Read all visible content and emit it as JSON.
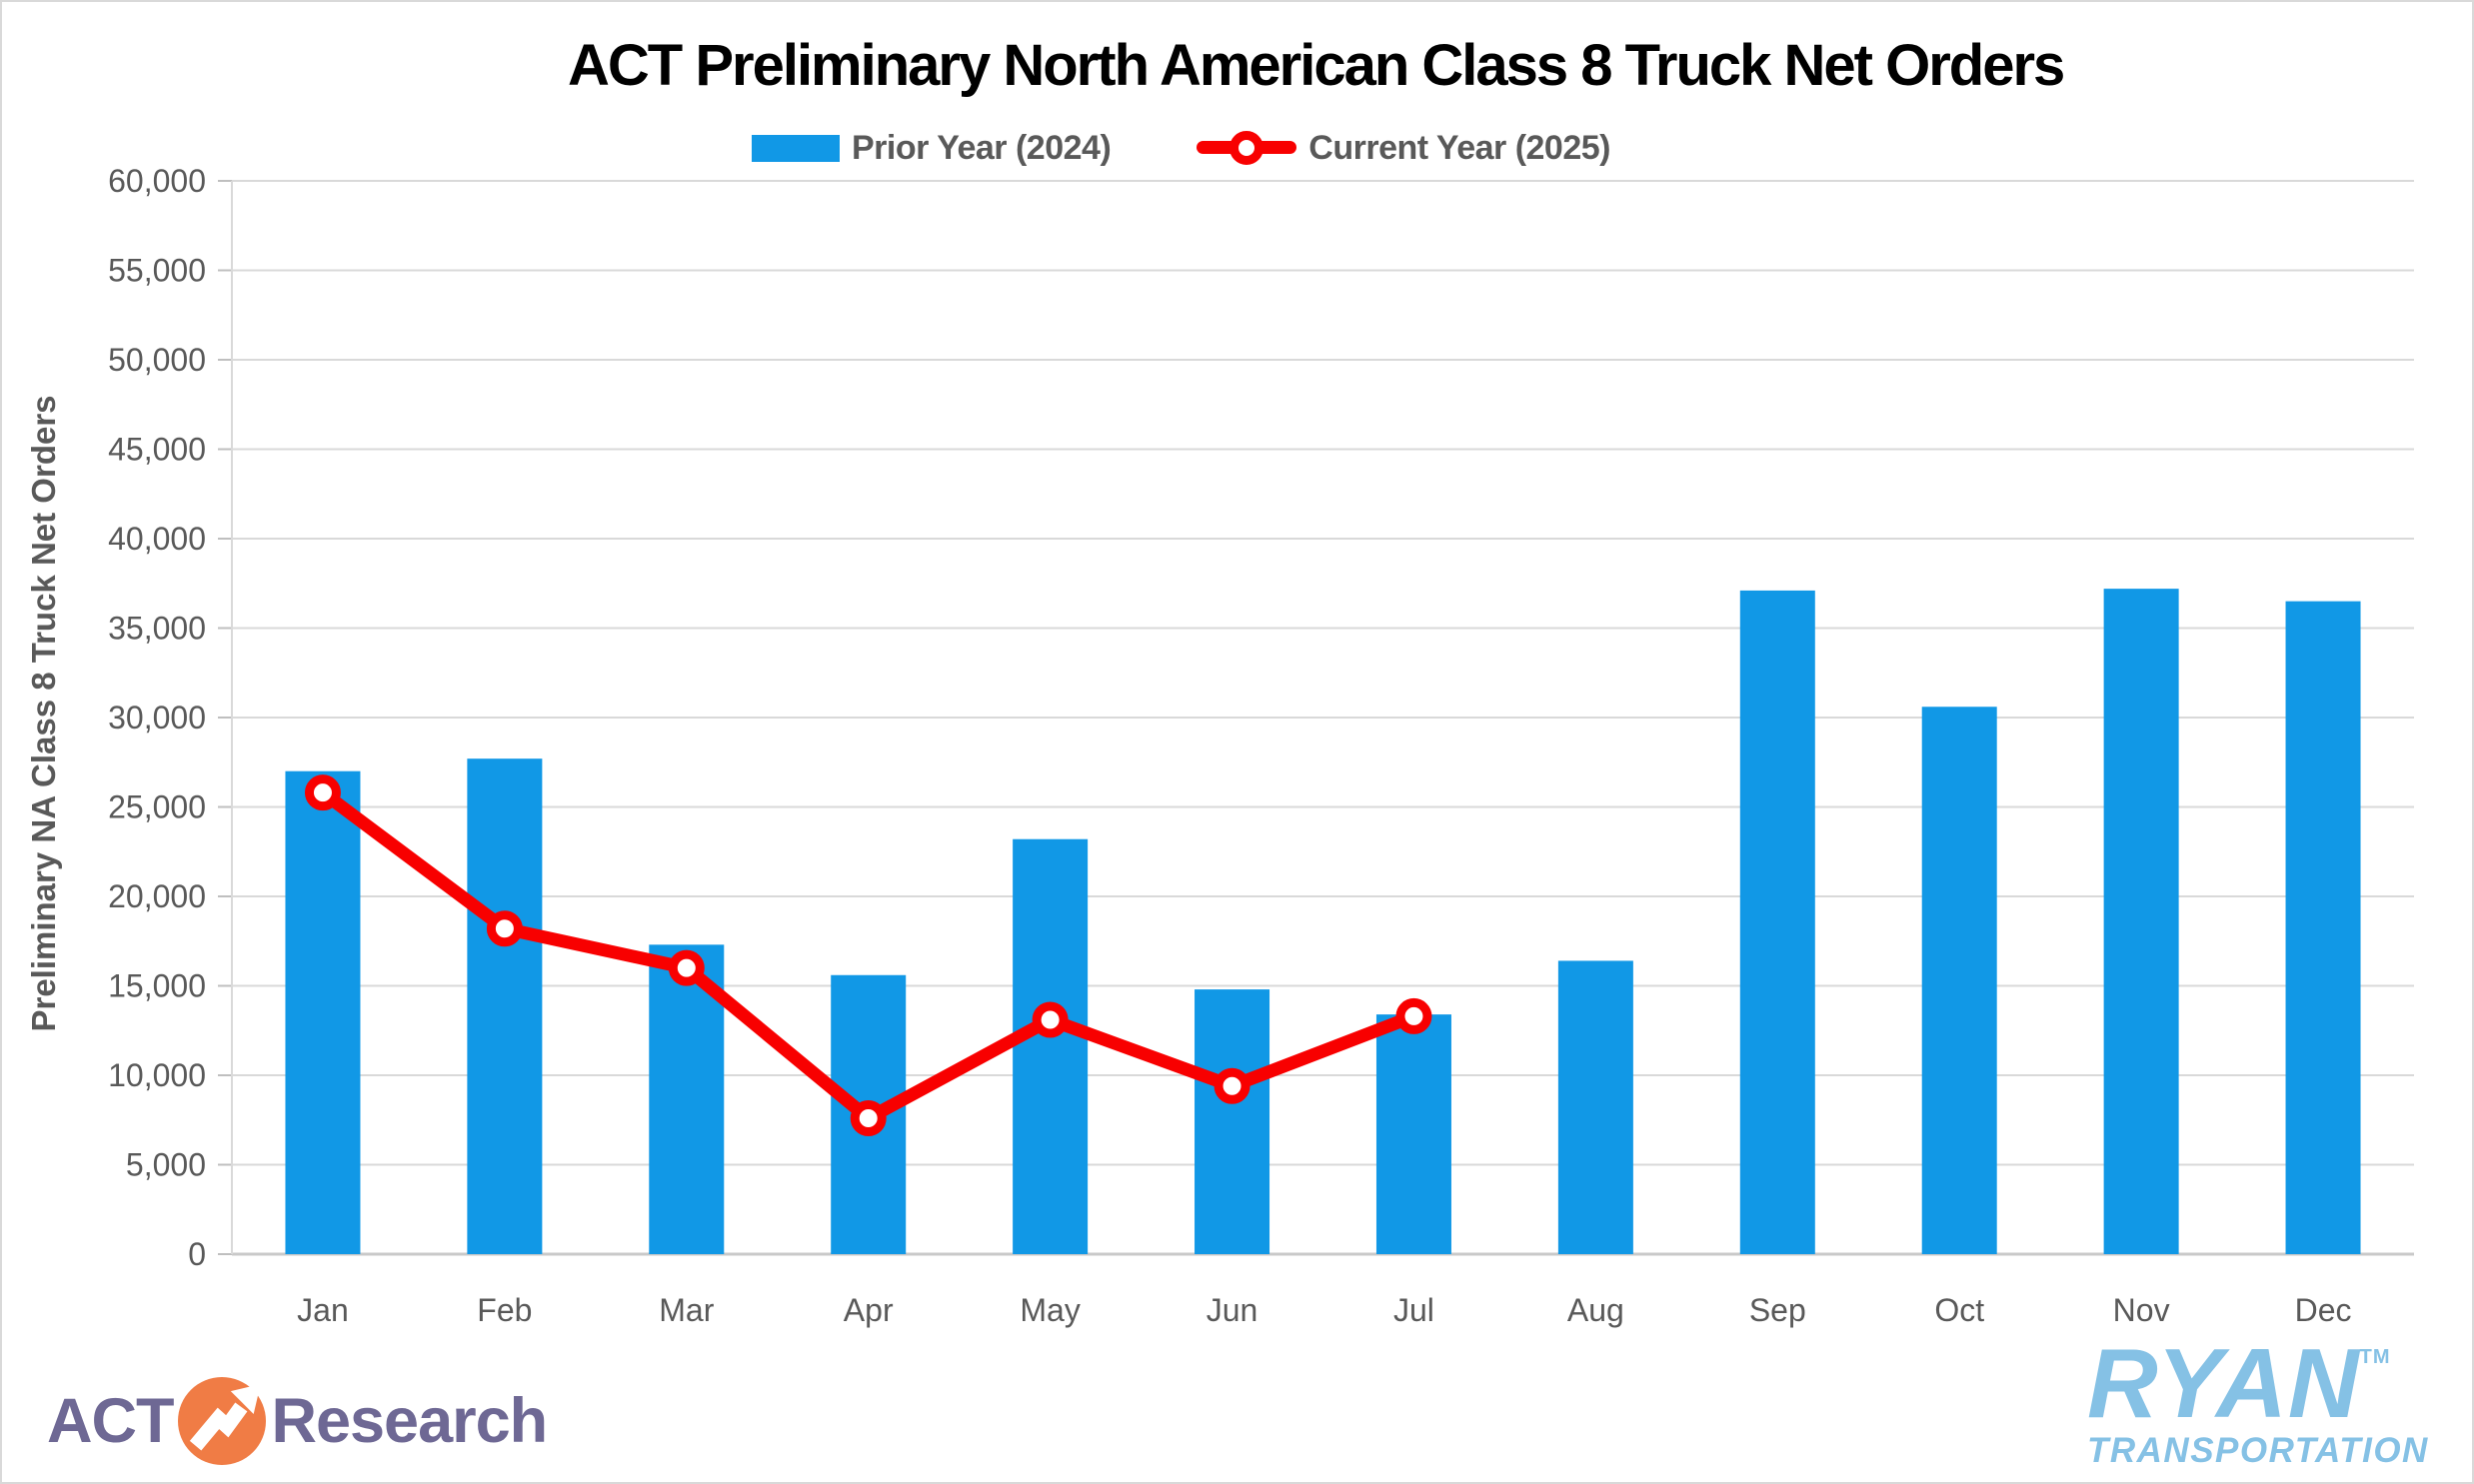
{
  "title": "ACT Preliminary North American Class 8 Truck Net Orders",
  "colors": {
    "bar_blue": "#1198E6",
    "line_red": "#F80000",
    "marker_fill": "#FFFFFF",
    "gridline": "#D9D9D9",
    "axis_line": "#BFBFBF",
    "axis_text": "#595959",
    "title_text": "#000000",
    "frame_border": "#D9D9D9",
    "act_purple": "#6E6894",
    "act_orange": "#F07C45",
    "ryan_blue": "#85C1E5"
  },
  "chart_data": {
    "type": "bar",
    "title": "ACT Preliminary North American Class 8 Truck Net Orders",
    "ylabel": "Preliminary NA Class 8 Truck Net Orders",
    "xlabel": "",
    "ylim": [
      0,
      60000
    ],
    "ytick_step": 5000,
    "grid": true,
    "legend_position": "top",
    "categories": [
      "Jan",
      "Feb",
      "Mar",
      "Apr",
      "May",
      "Jun",
      "Jul",
      "Aug",
      "Sep",
      "Oct",
      "Nov",
      "Dec"
    ],
    "series": [
      {
        "name": "Prior Year (2024)",
        "type": "bar",
        "color": "#1198E6",
        "values": [
          27000,
          27700,
          17300,
          15600,
          23200,
          14800,
          13400,
          16400,
          37100,
          30600,
          37200,
          36500
        ]
      },
      {
        "name": "Current Year (2025)",
        "type": "line",
        "color": "#F80000",
        "values": [
          25800,
          18200,
          16000,
          7600,
          13100,
          9400,
          13300,
          null,
          null,
          null,
          null,
          null
        ]
      }
    ]
  },
  "logos": {
    "act": {
      "prefix": "ACT",
      "suffix": "Research",
      "icon": "arrow-up-right-circle"
    },
    "ryan": {
      "name": "RYAN",
      "tm": "TM",
      "subtitle": "TRANSPORTATION"
    }
  }
}
